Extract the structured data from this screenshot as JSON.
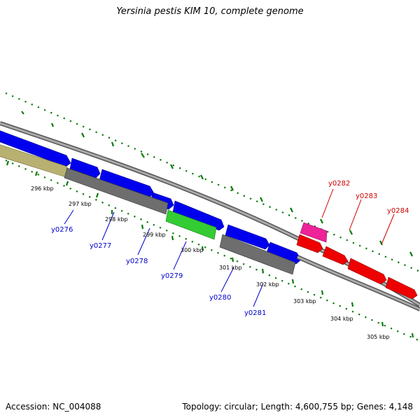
{
  "title": "Yersinia pestis KIM 10, complete genome",
  "footer": {
    "accession": "Accession: NC_004088",
    "summary": "Topology: circular; Length: 4,600,755 bp; Genes: 4,148"
  },
  "colors": {
    "backbone": "#888888",
    "tick": "#0a7a0a",
    "forward_label": "#0000cc",
    "reverse_label": "#cc0000",
    "blue": "#0000ee",
    "red": "#ee0000",
    "gray": "#6e6e6e",
    "tan": "#b8b070",
    "green": "#33cc33",
    "pink": "#ee2299"
  },
  "scale_labels": [
    "296 kbp",
    "297 kbp",
    "298 kbp",
    "299 kbp",
    "300 kbp",
    "301 kbp",
    "302 kbp",
    "303 kbp",
    "304 kbp",
    "305 kbp"
  ],
  "gene_labels": {
    "forward": [
      "y0276",
      "y0277",
      "y0278",
      "y0279",
      "y0280",
      "y0281"
    ],
    "reverse": [
      "y0282",
      "y0283",
      "y0284"
    ]
  }
}
